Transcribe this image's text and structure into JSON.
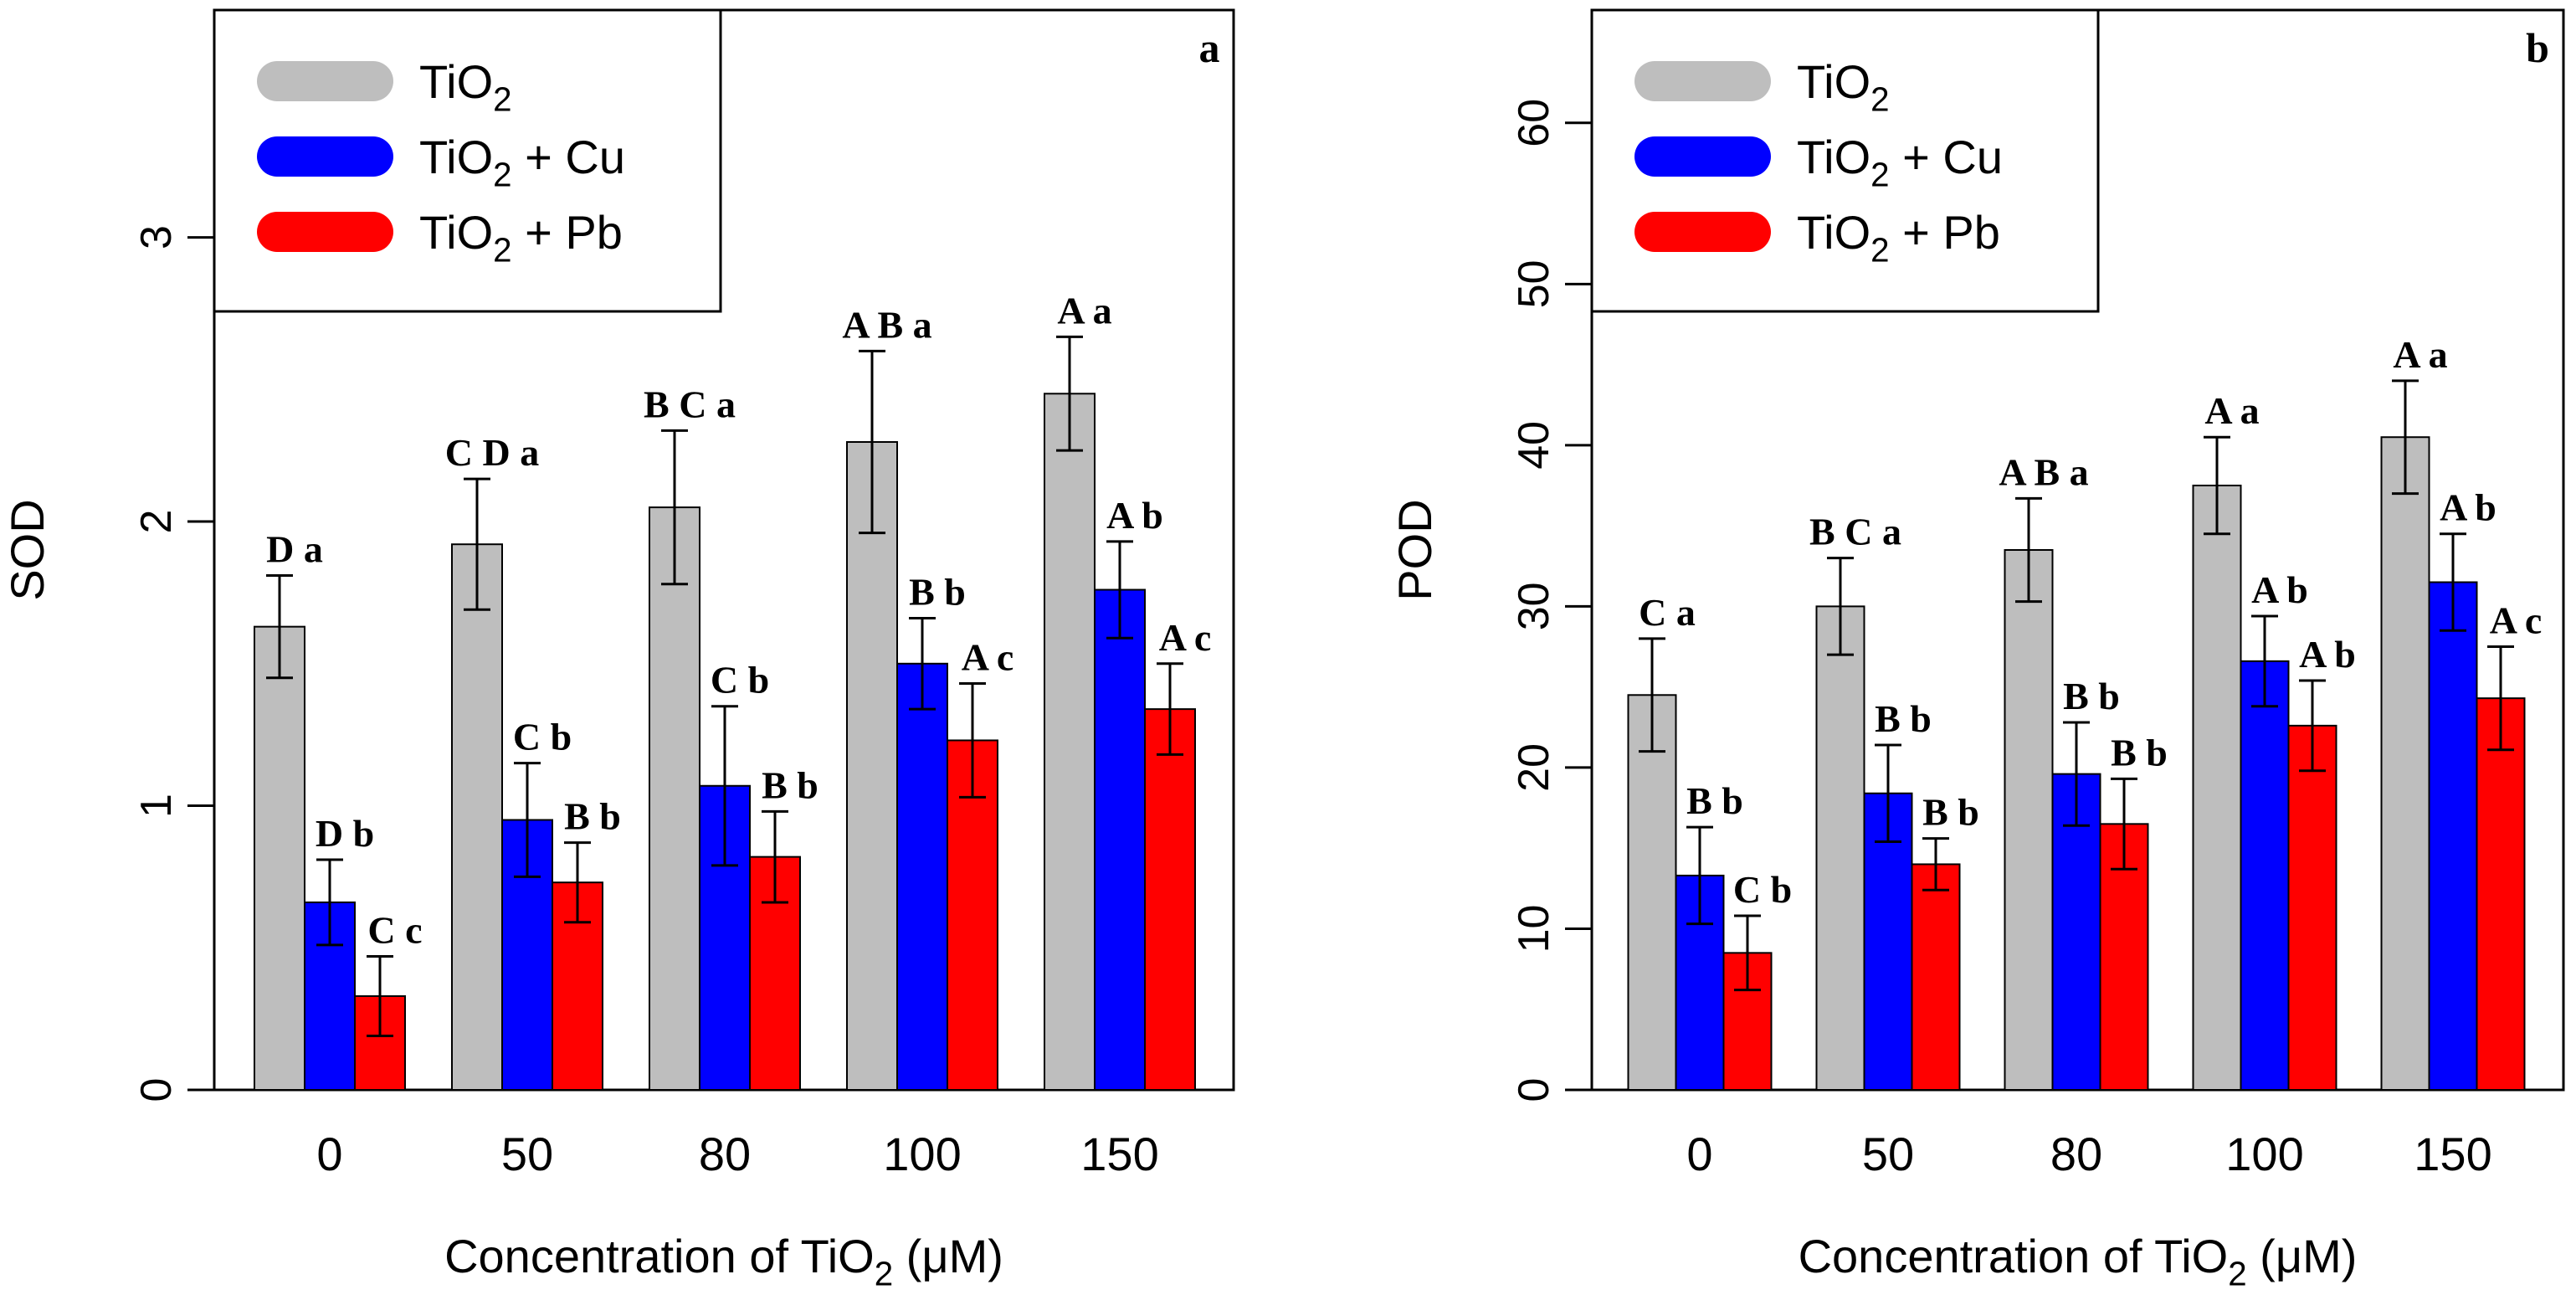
{
  "chart_data": [
    {
      "type": "bar",
      "panel_label": "a",
      "title": "",
      "xlabel_prefix": "Concentration of TiO",
      "xlabel_sub": "2",
      "xlabel_suffix": " (μM)",
      "ylabel": "SOD",
      "ylim": [
        0,
        3.8
      ],
      "yticks": [
        0,
        1,
        2,
        3
      ],
      "ytick_labels": [
        "0",
        "1",
        "2",
        "3"
      ],
      "categories": [
        "0",
        "50",
        "80",
        "100",
        "150"
      ],
      "legend_position": "top-left",
      "series": [
        {
          "name": "TiO2",
          "legend_text": "TiO",
          "legend_sub": "2",
          "legend_suffix": "",
          "color": "#bebebe",
          "values": [
            1.63,
            1.92,
            2.05,
            2.28,
            2.45
          ],
          "errors": [
            0.18,
            0.23,
            0.27,
            0.32,
            0.2
          ],
          "labels": [
            "D a",
            "C D a",
            "B C a",
            "A B a",
            "A a"
          ]
        },
        {
          "name": "TiO2 + Cu",
          "legend_text": "TiO",
          "legend_sub": "2",
          "legend_suffix": " + Cu",
          "color": "#0000ff",
          "values": [
            0.66,
            0.95,
            1.07,
            1.5,
            1.76
          ],
          "errors": [
            0.15,
            0.2,
            0.28,
            0.16,
            0.17
          ],
          "labels": [
            "D b",
            "C b",
            "C b",
            "B b",
            "A b"
          ]
        },
        {
          "name": "TiO2 + Pb",
          "legend_text": "TiO",
          "legend_sub": "2",
          "legend_suffix": " + Pb",
          "color": "#ff0000",
          "values": [
            0.33,
            0.73,
            0.82,
            1.23,
            1.34
          ],
          "errors": [
            0.14,
            0.14,
            0.16,
            0.2,
            0.16
          ],
          "labels": [
            "C c",
            "B b",
            "B b",
            "A c",
            "A c"
          ]
        }
      ]
    },
    {
      "type": "bar",
      "panel_label": "b",
      "title": "",
      "xlabel_prefix": "Concentration of TiO",
      "xlabel_sub": "2",
      "xlabel_suffix": " (μM)",
      "ylabel": "POD",
      "ylim": [
        0,
        67
      ],
      "yticks": [
        0,
        10,
        20,
        30,
        40,
        50,
        60
      ],
      "ytick_labels": [
        "0",
        "10",
        "20",
        "30",
        "40",
        "50",
        "60"
      ],
      "categories": [
        "0",
        "50",
        "80",
        "100",
        "150"
      ],
      "legend_position": "top-left",
      "series": [
        {
          "name": "TiO2",
          "legend_text": "TiO",
          "legend_sub": "2",
          "legend_suffix": "",
          "color": "#bebebe",
          "values": [
            24.5,
            30.0,
            33.5,
            37.5,
            40.5
          ],
          "errors": [
            3.5,
            3.0,
            3.2,
            3.0,
            3.5
          ],
          "labels": [
            "C a",
            "B C a",
            "A B a",
            "A a",
            "A a"
          ]
        },
        {
          "name": "TiO2 + Cu",
          "legend_text": "TiO",
          "legend_sub": "2",
          "legend_suffix": " + Cu",
          "color": "#0000ff",
          "values": [
            13.3,
            18.4,
            19.6,
            26.6,
            31.5
          ],
          "errors": [
            3.0,
            3.0,
            3.2,
            2.8,
            3.0
          ],
          "labels": [
            "B b",
            "B b",
            "B b",
            "A b",
            "A b"
          ]
        },
        {
          "name": "TiO2 + Pb",
          "legend_text": "TiO",
          "legend_sub": "2",
          "legend_suffix": " + Pb",
          "color": "#ff0000",
          "values": [
            8.5,
            14.0,
            16.5,
            22.6,
            24.3
          ],
          "errors": [
            2.3,
            1.6,
            2.8,
            2.8,
            3.2
          ],
          "labels": [
            "C b",
            "B b",
            "B b",
            "A b",
            "A c"
          ]
        }
      ]
    }
  ]
}
